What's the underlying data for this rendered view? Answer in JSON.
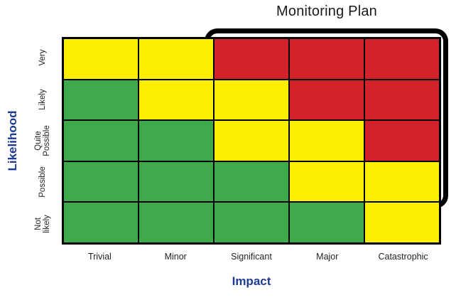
{
  "page": {
    "background": "#ffffff"
  },
  "chart_data": {
    "type": "heatmap",
    "title": "Monitoring Plan",
    "xlabel": "Impact",
    "ylabel": "Likelihood",
    "x_categories": [
      "Trivial",
      "Minor",
      "Significant",
      "Major",
      "Catastrophic"
    ],
    "y_categories": [
      "Very",
      "Likely",
      "Quite Possible",
      "Possible",
      "Not likely"
    ],
    "y_category_display": [
      "Very",
      "Likely",
      "Quite\nPossible",
      "Possible",
      "Not likely"
    ],
    "cells": [
      [
        "yellow",
        "yellow",
        "red",
        "red",
        "red"
      ],
      [
        "green",
        "yellow",
        "yellow",
        "red",
        "red"
      ],
      [
        "green",
        "green",
        "yellow",
        "yellow",
        "red"
      ],
      [
        "green",
        "green",
        "green",
        "yellow",
        "yellow"
      ],
      [
        "green",
        "green",
        "green",
        "green",
        "yellow"
      ]
    ],
    "annotation": {
      "label": "Monitoring Plan",
      "shape": "rounded-rectangle-outline",
      "covers_x": [
        "Significant",
        "Major",
        "Catastrophic"
      ],
      "covers_y": [
        "Very",
        "Likely",
        "Quite Possible",
        "Possible"
      ]
    },
    "legend": "none",
    "grid": "on"
  },
  "colors": {
    "green": "#3faa4b",
    "yellow": "#fcee00",
    "red": "#d2232a",
    "grid_line": "#000000",
    "annotation_outline": "#000000",
    "axis_label_blue": "#1f3a93",
    "tick_label": "#231f20",
    "title_text": "#1a1a1a"
  }
}
